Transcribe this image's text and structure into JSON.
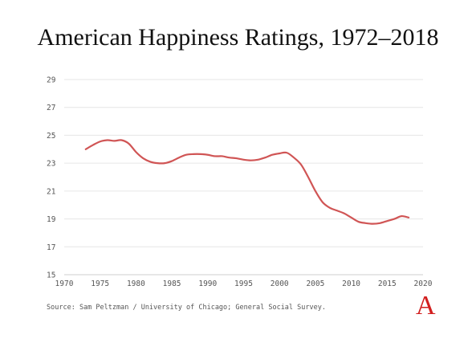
{
  "chart_data": {
    "type": "line",
    "title": "American Happiness Ratings, 1972–2018",
    "xlabel": "",
    "ylabel": "",
    "xlim": [
      1970,
      2020
    ],
    "ylim": [
      15,
      29
    ],
    "x_ticks": [
      1970,
      1975,
      1980,
      1985,
      1990,
      1995,
      2000,
      2005,
      2010,
      2015,
      2020
    ],
    "y_ticks": [
      15,
      17,
      19,
      21,
      23,
      25,
      27,
      29
    ],
    "grid": true,
    "series": [
      {
        "color": "#d05555",
        "points": [
          [
            1973,
            24.0
          ],
          [
            1974,
            24.3
          ],
          [
            1975,
            24.55
          ],
          [
            1976,
            24.65
          ],
          [
            1977,
            24.6
          ],
          [
            1978,
            24.65
          ],
          [
            1979,
            24.4
          ],
          [
            1980,
            23.8
          ],
          [
            1981,
            23.35
          ],
          [
            1982,
            23.1
          ],
          [
            1983,
            23.0
          ],
          [
            1984,
            23.0
          ],
          [
            1985,
            23.15
          ],
          [
            1986,
            23.4
          ],
          [
            1987,
            23.6
          ],
          [
            1988,
            23.65
          ],
          [
            1989,
            23.65
          ],
          [
            1990,
            23.6
          ],
          [
            1991,
            23.5
          ],
          [
            1992,
            23.5
          ],
          [
            1993,
            23.4
          ],
          [
            1994,
            23.35
          ],
          [
            1995,
            23.25
          ],
          [
            1996,
            23.2
          ],
          [
            1997,
            23.25
          ],
          [
            1998,
            23.4
          ],
          [
            1999,
            23.6
          ],
          [
            2000,
            23.7
          ],
          [
            2001,
            23.75
          ],
          [
            2002,
            23.4
          ],
          [
            2003,
            22.9
          ],
          [
            2004,
            22.0
          ],
          [
            2005,
            21.0
          ],
          [
            2006,
            20.2
          ],
          [
            2007,
            19.8
          ],
          [
            2008,
            19.6
          ],
          [
            2009,
            19.4
          ],
          [
            2010,
            19.1
          ],
          [
            2011,
            18.8
          ],
          [
            2012,
            18.7
          ],
          [
            2013,
            18.65
          ],
          [
            2014,
            18.7
          ],
          [
            2015,
            18.85
          ],
          [
            2016,
            19.0
          ],
          [
            2017,
            19.2
          ],
          [
            2018,
            19.1
          ]
        ]
      }
    ]
  },
  "source": "Source: Sam Peltzman / University of Chicago; General Social Survey.",
  "logo_letter": "A",
  "colors": {
    "line": "#d05555",
    "logo": "#d21f1f",
    "grid": "#e6e6e6"
  }
}
